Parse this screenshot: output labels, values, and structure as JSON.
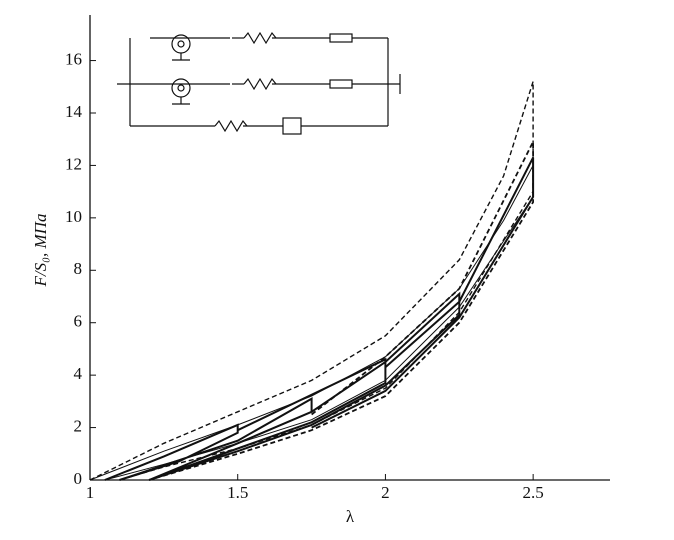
{
  "chart_data": {
    "type": "line",
    "x_label": "λ",
    "y_label": "F/S₀, МПа",
    "xlim": [
      1,
      2.75
    ],
    "ylim": [
      0,
      17.7
    ],
    "xticks": [
      1,
      1.5,
      2,
      2.5
    ],
    "yticks": [
      0,
      2,
      4,
      6,
      8,
      10,
      12,
      14,
      16
    ],
    "series": [
      {
        "color": "#111111",
        "style": "dashed",
        "width": 1.4,
        "x": [
          1,
          1.25,
          1.5,
          1.75,
          2,
          2.25,
          2.4,
          2.5,
          2.5,
          2.25,
          2,
          1.75,
          1.5,
          1.25,
          1.1
        ],
        "values": [
          0,
          1.4,
          2.6,
          3.8,
          5.5,
          8.4,
          11.6,
          15.2,
          11,
          6.4,
          3.5,
          2.1,
          1.2,
          0.5,
          0
        ]
      },
      {
        "color": "#111111",
        "style": "solid",
        "width": 1,
        "x": [
          1,
          1.25,
          1.5,
          1.75,
          2,
          2.25,
          2.4,
          2.5,
          2.5,
          2.25,
          2,
          1.75,
          1.5,
          1.25,
          1.05
        ],
        "values": [
          0,
          1.1,
          2.1,
          3.2,
          4.7,
          7.3,
          9.9,
          12,
          10.8,
          6.6,
          3.8,
          2.3,
          1.4,
          0.6,
          0
        ]
      },
      {
        "color": "#111111",
        "style": "solid",
        "width": 2,
        "x": [
          1.05,
          1.25,
          1.5,
          1.5,
          1.3,
          1.1,
          null,
          1.1,
          1.5,
          1.75,
          1.75,
          1.5,
          1.2,
          null,
          1.5,
          2,
          2,
          1.75,
          1.5,
          1.2,
          null,
          1.75,
          2,
          2.25,
          2.25,
          2,
          1.75,
          1.5,
          1.2,
          null,
          2,
          2.25,
          2.5,
          2.5,
          2.25,
          2,
          1.75
        ],
        "values": [
          0,
          0.9,
          2.1,
          1.8,
          0.7,
          0,
          null,
          0,
          1.5,
          3.1,
          2.6,
          1.4,
          0,
          null,
          1.9,
          4.6,
          3.7,
          2.2,
          1.2,
          0,
          null,
          2.6,
          4.5,
          7.1,
          6.3,
          3.6,
          2.1,
          1.1,
          0,
          null,
          4.3,
          6.8,
          12.3,
          10.8,
          6.2,
          3.4,
          2
        ]
      },
      {
        "color": "#111111",
        "style": "dashed",
        "width": 1.8,
        "x": [
          1.75,
          2,
          2.25,
          2.5,
          2.5,
          2.25,
          2,
          1.75,
          1.5,
          1.2
        ],
        "values": [
          2.5,
          4.7,
          7.3,
          12.9,
          10.6,
          6,
          3.2,
          1.9,
          1,
          0
        ]
      }
    ]
  }
}
